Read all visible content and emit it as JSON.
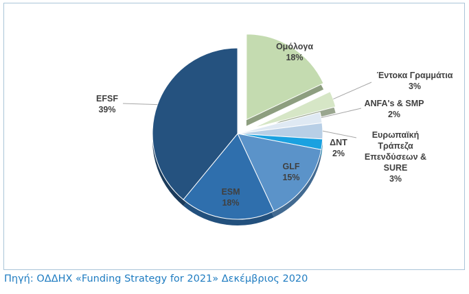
{
  "chart_data": {
    "type": "pie",
    "title": "",
    "slices": [
      {
        "label": "Ομόλογα",
        "value": 18,
        "value_label": "18%",
        "color": "#c4dbb0",
        "exploded": true
      },
      {
        "label": "Έντοκα Γραμμάτια",
        "value": 3,
        "value_label": "3%",
        "color": "#d6e6c6",
        "exploded": true
      },
      {
        "label": "ANFA's & SMP",
        "value": 2,
        "value_label": "2%",
        "color": "#dfe9f3",
        "exploded": false
      },
      {
        "label": "Ευρωπαϊκή Τράπεζα Επενδύσεων & SURE",
        "label_lines": [
          "Ευρωπαϊκή",
          "Τράπεζα",
          "Επενδύσεων &",
          "SURE"
        ],
        "value": 3,
        "value_label": "3%",
        "color": "#b8cfe6",
        "exploded": false
      },
      {
        "label": "ΔΝΤ",
        "value": 2,
        "value_label": "2%",
        "color": "#1aa1e0",
        "exploded": false
      },
      {
        "label": "GLF",
        "value": 15,
        "value_label": "15%",
        "color": "#5b93c9",
        "exploded": false
      },
      {
        "label": "ESM",
        "value": 18,
        "value_label": "18%",
        "color": "#2f6fad",
        "exploded": false
      },
      {
        "label": "EFSF",
        "value": 39,
        "value_label": "39%",
        "color": "#25527f",
        "exploded": false
      }
    ],
    "legend": "none",
    "data_labels": "category and percent"
  },
  "source": "Πηγή: ΟΔΔΗΧ «Funding  Strategy for 2021» Δεκέμβριος 2020"
}
